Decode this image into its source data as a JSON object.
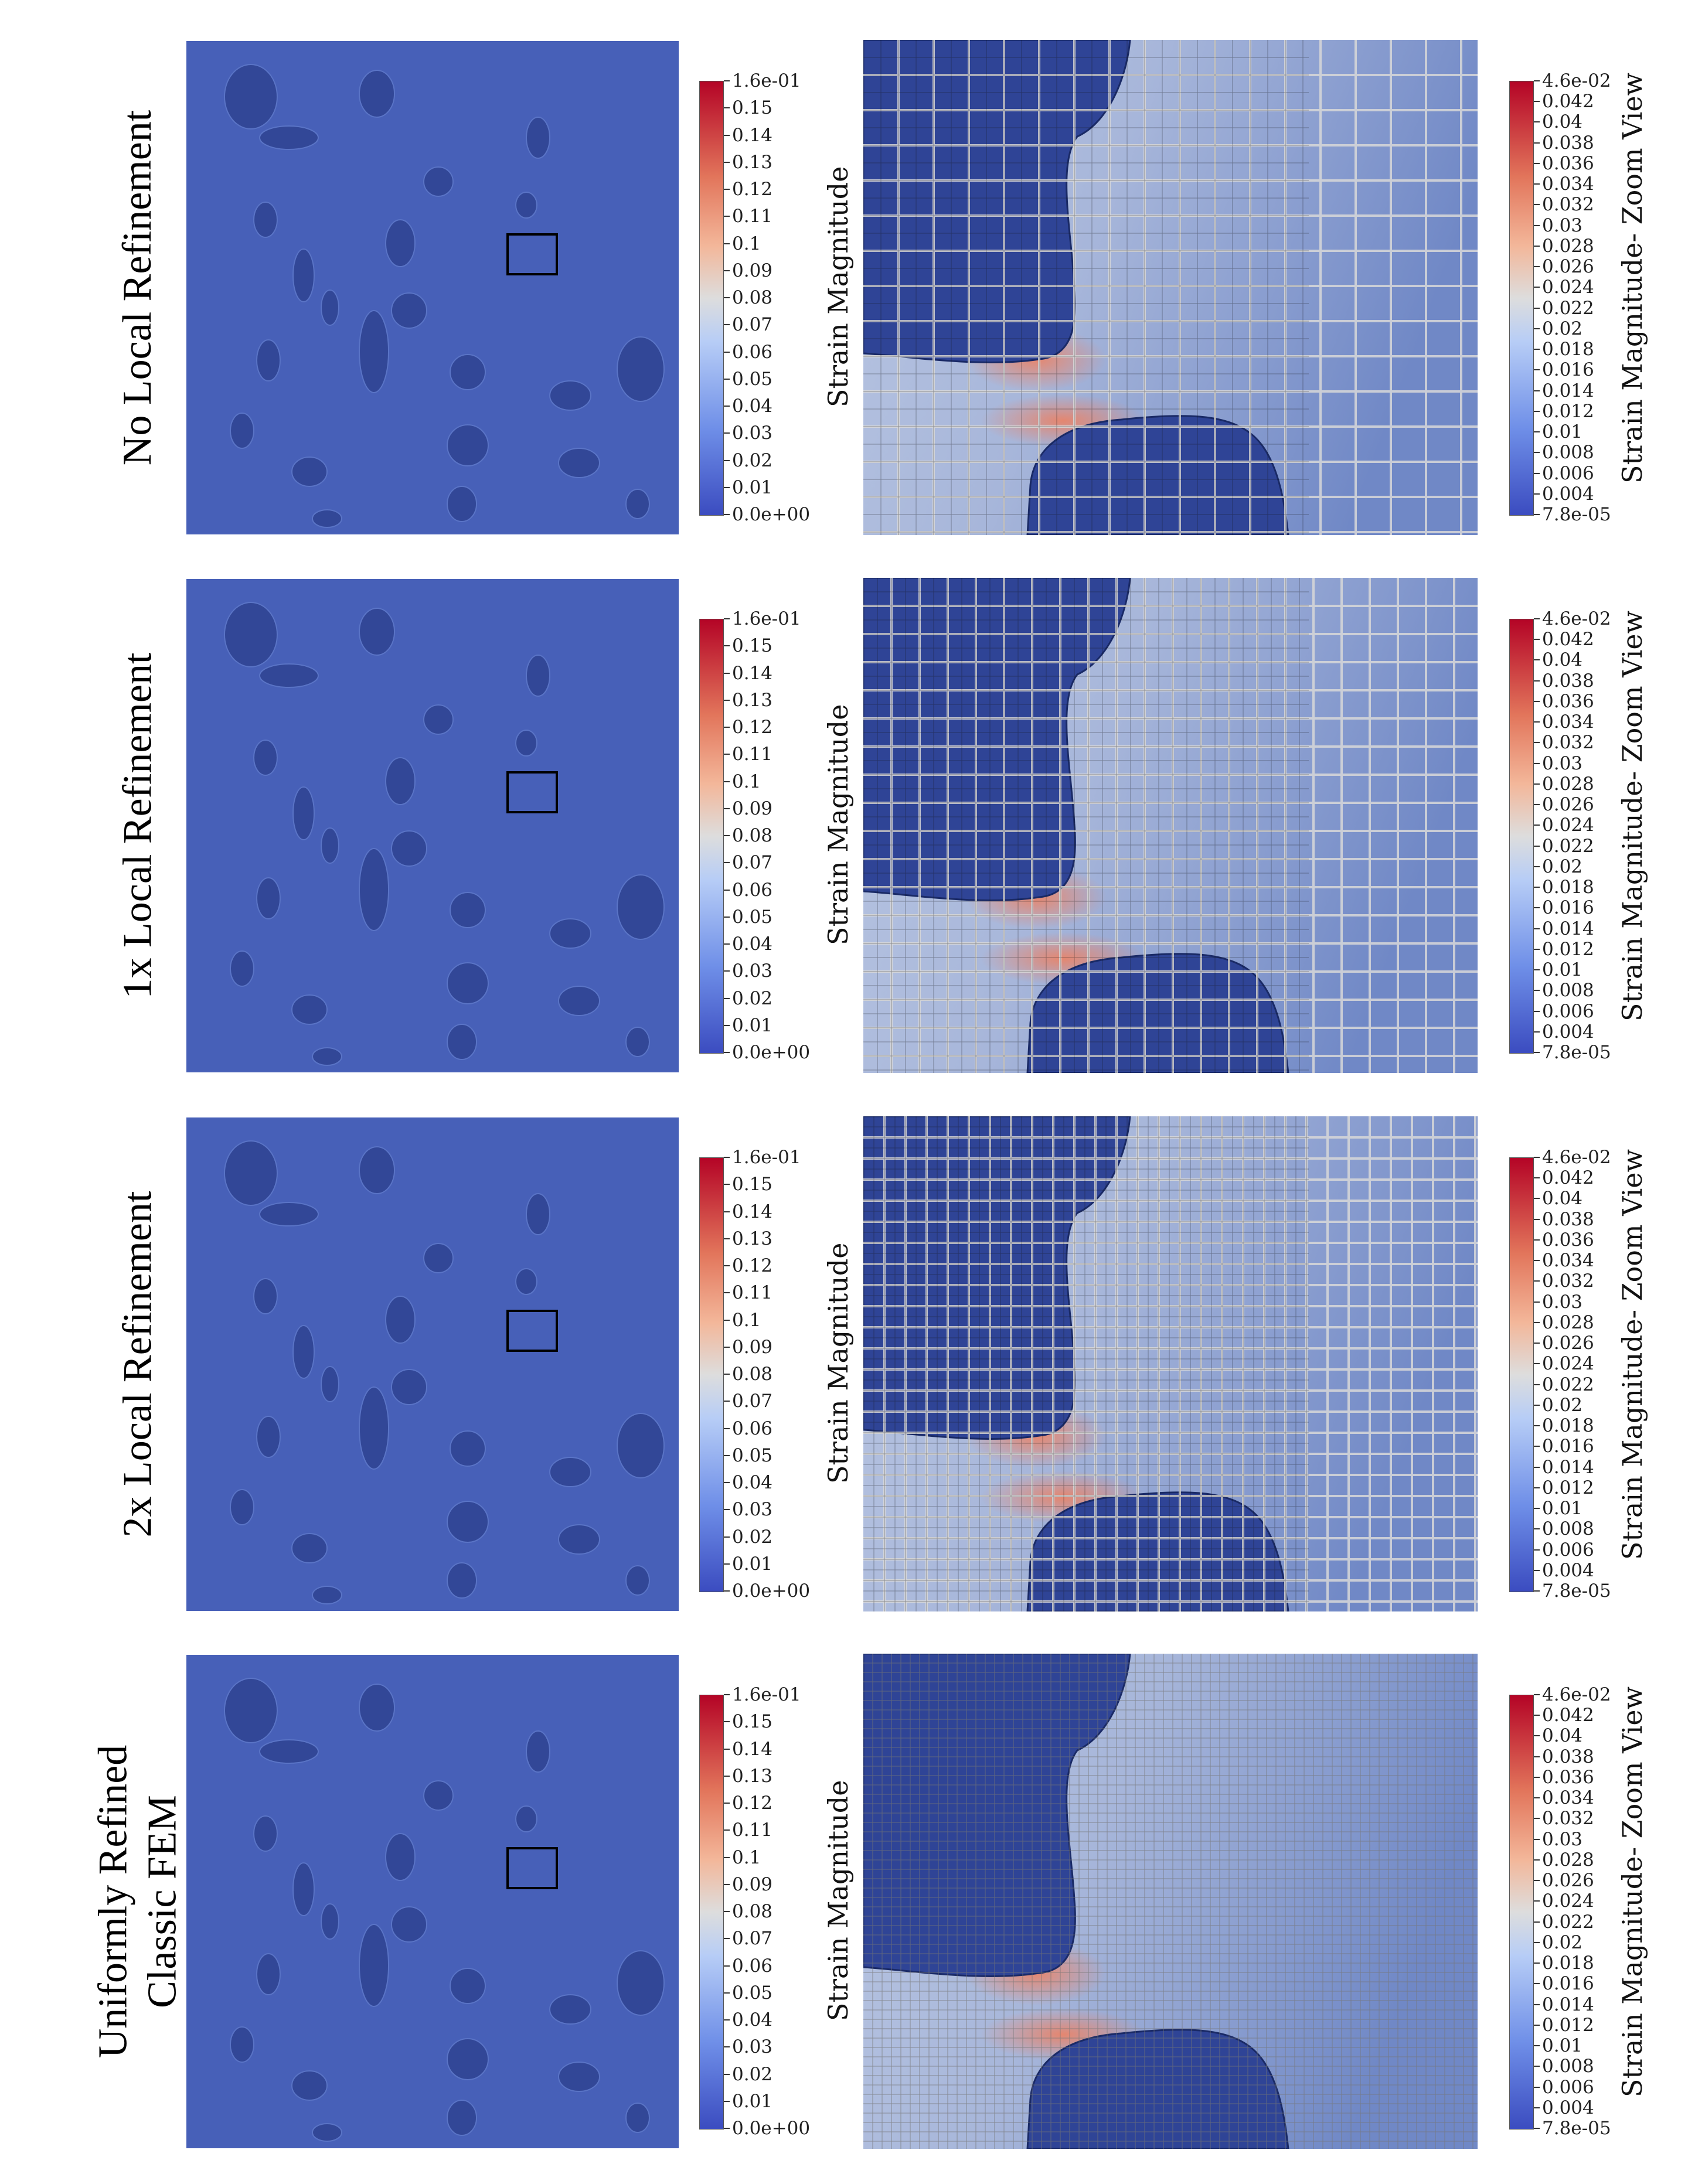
{
  "colorbar": {
    "strain_ticks": [
      "1.6e-01",
      "0.15",
      "0.14",
      "0.13",
      "0.12",
      "0.11",
      "0.1",
      "0.09",
      "0.08",
      "0.07",
      "0.06",
      "0.05",
      "0.04",
      "0.03",
      "0.02",
      "0.01",
      "0.0e+00"
    ],
    "strain_title": "Strain Magnitude",
    "zoom_ticks": [
      "4.6e-02",
      "0.042",
      "0.04",
      "0.038",
      "0.036",
      "0.034",
      "0.032",
      "0.03",
      "0.028",
      "0.026",
      "0.024",
      "0.022",
      "0.02",
      "0.018",
      "0.016",
      "0.014",
      "0.012",
      "0.01",
      "0.008",
      "0.006",
      "0.004",
      "7.8e-05"
    ],
    "zoom_title": "Strain Magnitude- Zoom View",
    "colors": {
      "low": "#3b4cc0",
      "mid": "#dddddd",
      "high": "#b40426"
    }
  },
  "rows": [
    {
      "label_lines": [
        "No Local Refinement"
      ],
      "mesh": "coarse"
    },
    {
      "label_lines": [
        "1x Local Refinement"
      ],
      "mesh": "refined1"
    },
    {
      "label_lines": [
        "2x Local Refinement"
      ],
      "mesh": "refined2"
    },
    {
      "label_lines": [
        "Uniformly Refined",
        "Classic FEM"
      ],
      "mesh": "uniform"
    }
  ]
}
